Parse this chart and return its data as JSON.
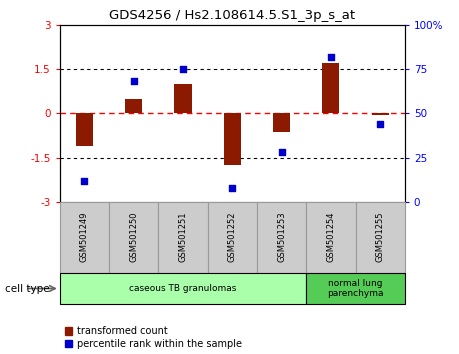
{
  "title": "GDS4256 / Hs2.108614.5.S1_3p_s_at",
  "samples": [
    "GSM501249",
    "GSM501250",
    "GSM501251",
    "GSM501252",
    "GSM501253",
    "GSM501254",
    "GSM501255"
  ],
  "transformed_count": [
    -1.1,
    0.5,
    1.0,
    -1.75,
    -0.65,
    1.7,
    -0.05
  ],
  "percentile_rank": [
    12,
    68,
    75,
    8,
    28,
    82,
    44
  ],
  "ylim_left": [
    -3,
    3
  ],
  "ylim_right": [
    0,
    100
  ],
  "yticks_left": [
    -3,
    -1.5,
    0,
    1.5,
    3
  ],
  "yticks_right": [
    0,
    25,
    50,
    75,
    100
  ],
  "ytick_labels_left": [
    "-3",
    "-1.5",
    "0",
    "1.5",
    "3"
  ],
  "ytick_labels_right": [
    "0",
    "25",
    "50",
    "75",
    "100%"
  ],
  "bar_color": "#8B1A00",
  "dot_color": "#0000CC",
  "bar_width": 0.35,
  "cell_type_groups": [
    {
      "label": "caseous TB granulomas",
      "indices": [
        0,
        1,
        2,
        3,
        4
      ],
      "color": "#AAFFAA"
    },
    {
      "label": "normal lung\nparenchyma",
      "indices": [
        5,
        6
      ],
      "color": "#55CC55"
    }
  ],
  "cell_type_label": "cell type",
  "legend_bar_label": "transformed count",
  "legend_dot_label": "percentile rank within the sample",
  "background_color": "#ffffff",
  "sample_box_color": "#CCCCCC",
  "sample_box_edge": "#999999"
}
